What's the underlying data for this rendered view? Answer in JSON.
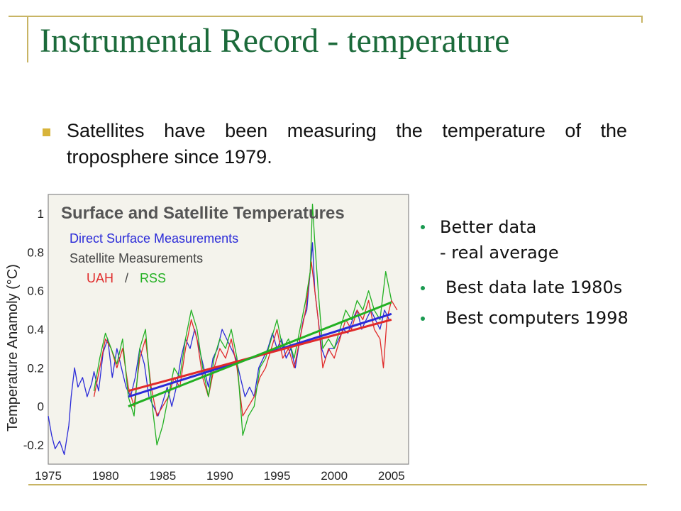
{
  "slide": {
    "title": "Instrumental Record - temperature",
    "bullet": "Satellites have been measuring the temperature of the troposphere since 1979.",
    "side_points": [
      "Better data",
      "- real average",
      "Best data late 1980s",
      "Best computers 1998"
    ],
    "accent_color": "#1b6a3a",
    "bullet_color": "#d8b43a"
  },
  "chart_data": {
    "type": "line",
    "title": "Surface and Satellite Temperatures",
    "legend": {
      "direct": "Direct Surface Measurements",
      "satellite": "Satellite Measurements",
      "uah": "UAH",
      "sep": "/",
      "rss": "RSS",
      "placement": "top-left"
    },
    "ylabel": "Temperature Anamoly (°C)",
    "xlim": [
      1975,
      2006.5
    ],
    "ylim": [
      -0.3,
      1.1
    ],
    "xticks": [
      1975,
      1980,
      1985,
      1990,
      1995,
      2000,
      2005
    ],
    "yticks": [
      -0.2,
      0,
      0.2,
      0.4,
      0.6,
      0.8,
      1
    ],
    "grid": false,
    "colors": {
      "surface": "#2a2ad8",
      "uah": "#e02a2a",
      "rss": "#22b022",
      "frame": "#888888",
      "plot_bg": "#f4f3ec"
    },
    "series": [
      {
        "name": "Direct Surface Measurements",
        "x": [
          1975.0,
          1975.3,
          1975.6,
          1976.0,
          1976.4,
          1976.8,
          1977.0,
          1977.3,
          1977.6,
          1978.0,
          1978.4,
          1978.8,
          1979.0,
          1979.4,
          1979.8,
          1980.2,
          1980.6,
          1981.0,
          1981.4,
          1981.8,
          1982.2,
          1982.6,
          1983.0,
          1983.4,
          1983.8,
          1984.2,
          1984.6,
          1985.0,
          1985.4,
          1985.8,
          1986.2,
          1986.6,
          1987.0,
          1987.4,
          1987.8,
          1988.2,
          1988.6,
          1989.0,
          1989.4,
          1989.8,
          1990.2,
          1990.6,
          1991.0,
          1991.4,
          1991.8,
          1992.2,
          1992.6,
          1993.0,
          1993.4,
          1993.8,
          1994.2,
          1994.6,
          1995.0,
          1995.4,
          1995.8,
          1996.2,
          1996.6,
          1997.0,
          1997.3,
          1997.6,
          1997.9,
          1998.1,
          1998.3,
          1998.6,
          1998.9,
          1999.2,
          1999.6,
          2000.0,
          2000.4,
          2000.8,
          2001.2,
          2001.6,
          2002.0,
          2002.4,
          2002.8,
          2003.2,
          2003.6,
          2004.0,
          2004.4,
          2004.8
        ],
        "values": [
          -0.05,
          -0.15,
          -0.22,
          -0.18,
          -0.25,
          -0.1,
          0.05,
          0.2,
          0.1,
          0.15,
          0.05,
          0.12,
          0.18,
          0.08,
          0.28,
          0.35,
          0.15,
          0.3,
          0.2,
          0.1,
          0.05,
          0.15,
          0.3,
          0.22,
          0.05,
          0.0,
          -0.05,
          0.02,
          0.1,
          0.0,
          0.1,
          0.25,
          0.35,
          0.3,
          0.4,
          0.3,
          0.2,
          0.1,
          0.25,
          0.3,
          0.4,
          0.35,
          0.3,
          0.25,
          0.15,
          0.05,
          0.1,
          0.05,
          0.2,
          0.25,
          0.3,
          0.38,
          0.3,
          0.35,
          0.25,
          0.3,
          0.2,
          0.35,
          0.45,
          0.5,
          0.7,
          0.85,
          0.6,
          0.45,
          0.3,
          0.25,
          0.3,
          0.3,
          0.35,
          0.4,
          0.38,
          0.45,
          0.5,
          0.4,
          0.45,
          0.5,
          0.45,
          0.4,
          0.5,
          0.45
        ]
      },
      {
        "name": "UAH",
        "x": [
          1979.0,
          1979.5,
          1980.0,
          1980.5,
          1981.0,
          1981.5,
          1982.0,
          1982.5,
          1983.0,
          1983.5,
          1984.0,
          1984.5,
          1985.0,
          1985.5,
          1986.0,
          1986.5,
          1987.0,
          1987.5,
          1988.0,
          1988.5,
          1989.0,
          1989.5,
          1990.0,
          1990.5,
          1991.0,
          1991.5,
          1992.0,
          1992.5,
          1993.0,
          1993.5,
          1994.0,
          1994.5,
          1995.0,
          1995.5,
          1996.0,
          1996.5,
          1997.0,
          1997.5,
          1998.0,
          1998.3,
          1998.6,
          1999.0,
          1999.5,
          2000.0,
          2000.5,
          2001.0,
          2001.5,
          2002.0,
          2002.5,
          2003.0,
          2003.5,
          2004.0,
          2004.3,
          2004.6,
          2005.0,
          2005.5
        ],
        "values": [
          0.05,
          0.2,
          0.35,
          0.3,
          0.2,
          0.3,
          0.1,
          0.0,
          0.25,
          0.35,
          0.1,
          -0.05,
          0.0,
          0.05,
          0.15,
          0.1,
          0.3,
          0.45,
          0.35,
          0.15,
          0.05,
          0.2,
          0.3,
          0.25,
          0.35,
          0.2,
          -0.05,
          0.0,
          0.05,
          0.15,
          0.2,
          0.3,
          0.4,
          0.25,
          0.3,
          0.2,
          0.35,
          0.5,
          0.75,
          0.6,
          0.45,
          0.2,
          0.3,
          0.25,
          0.35,
          0.45,
          0.4,
          0.5,
          0.45,
          0.55,
          0.4,
          0.35,
          0.2,
          0.45,
          0.55,
          0.5
        ]
      },
      {
        "name": "RSS",
        "x": [
          1979.0,
          1979.5,
          1980.0,
          1980.5,
          1981.0,
          1981.5,
          1982.0,
          1982.5,
          1983.0,
          1983.5,
          1984.0,
          1984.5,
          1985.0,
          1985.5,
          1986.0,
          1986.5,
          1987.0,
          1987.5,
          1988.0,
          1988.5,
          1989.0,
          1989.5,
          1990.0,
          1990.5,
          1991.0,
          1991.5,
          1992.0,
          1992.5,
          1993.0,
          1993.5,
          1994.0,
          1994.5,
          1995.0,
          1995.5,
          1996.0,
          1996.5,
          1997.0,
          1997.5,
          1997.9,
          1998.1,
          1998.3,
          1998.6,
          1999.0,
          1999.5,
          2000.0,
          2000.5,
          2001.0,
          2001.5,
          2002.0,
          2002.5,
          2003.0,
          2003.5,
          2004.0,
          2004.5,
          2005.0
        ],
        "values": [
          0.08,
          0.25,
          0.38,
          0.3,
          0.22,
          0.35,
          0.05,
          -0.05,
          0.3,
          0.4,
          0.05,
          -0.2,
          -0.1,
          0.05,
          0.2,
          0.15,
          0.35,
          0.5,
          0.4,
          0.2,
          0.05,
          0.25,
          0.35,
          0.3,
          0.4,
          0.25,
          -0.15,
          -0.05,
          0.0,
          0.2,
          0.25,
          0.35,
          0.45,
          0.3,
          0.35,
          0.25,
          0.4,
          0.55,
          0.7,
          1.05,
          0.85,
          0.6,
          0.3,
          0.35,
          0.3,
          0.4,
          0.5,
          0.45,
          0.55,
          0.5,
          0.6,
          0.5,
          0.45,
          0.7,
          0.55
        ]
      }
    ],
    "trends": [
      {
        "name": "Direct Surface Measurements",
        "x": [
          1982.0,
          2005.0
        ],
        "values": [
          0.05,
          0.48
        ]
      },
      {
        "name": "UAH",
        "x": [
          1982.0,
          2005.0
        ],
        "values": [
          0.08,
          0.45
        ]
      },
      {
        "name": "RSS",
        "x": [
          1982.0,
          2005.0
        ],
        "values": [
          0.0,
          0.54
        ]
      }
    ]
  }
}
